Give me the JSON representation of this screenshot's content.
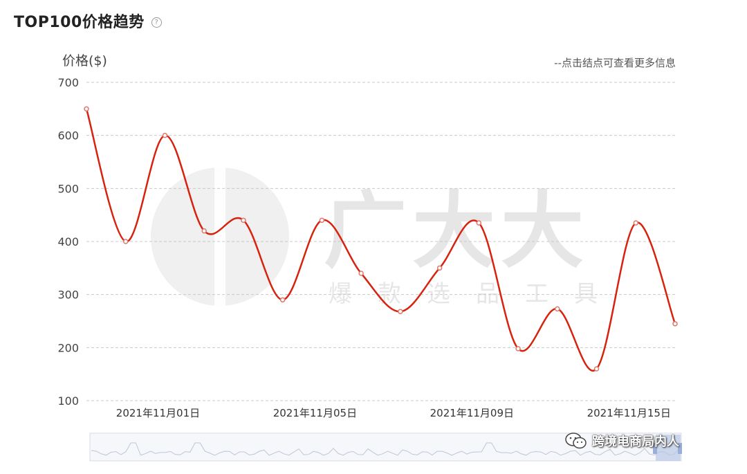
{
  "header": {
    "title": "TOP100价格趋势",
    "help_icon": "question-circle-icon"
  },
  "hint": "--点击结点可查看更多信息",
  "watermark": {
    "main": "广大大",
    "sub": [
      "爆",
      "款",
      "选",
      "品",
      "工",
      "具"
    ]
  },
  "brand": {
    "text": "跨境电商局内人",
    "icon": "wechat-icon"
  },
  "chart_data": {
    "type": "line",
    "title": "",
    "ylabel": "价格($)",
    "xlabel": "",
    "ylim": [
      100,
      700
    ],
    "yticks": [
      "700",
      "600",
      "500",
      "400",
      "300",
      "200",
      "100"
    ],
    "xtick_labels": [
      {
        "index": 2,
        "label": "2021年11月01日"
      },
      {
        "index": 6,
        "label": "2021年11月05日"
      },
      {
        "index": 10,
        "label": "2021年11月09日"
      },
      {
        "index": 14,
        "label": "2021年11月15日"
      }
    ],
    "grid": true,
    "series": [
      {
        "color": "#d7220e",
        "values": [
          650,
          400,
          600,
          420,
          440,
          290,
          440,
          340,
          268,
          350,
          435,
          198,
          273,
          160,
          435,
          245
        ]
      }
    ]
  }
}
